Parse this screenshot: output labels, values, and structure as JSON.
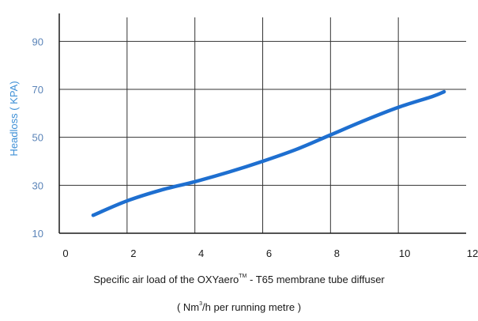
{
  "chart_data": {
    "type": "line",
    "ylabel": "Headloss ( KPA)",
    "xlabel_line1_pre": "Specific air load of the OXYaero",
    "xlabel_line1_sup": "TM",
    "xlabel_line1_post": " - T65 membrane tube diffuser",
    "xlabel_line2_pre": "( Nm",
    "xlabel_line2_sup": "3",
    "xlabel_line2_post": "/h per running metre )",
    "xlim": [
      0,
      12
    ],
    "ylim": [
      10,
      100
    ],
    "xticks": [
      0,
      2,
      4,
      6,
      8,
      10,
      12
    ],
    "yticks": [
      10,
      30,
      50,
      70,
      90
    ],
    "grid": true,
    "series": [
      {
        "color": "#1e6fd0",
        "x": [
          1.0,
          2.0,
          3.0,
          4.0,
          5.0,
          6.0,
          7.0,
          8.0,
          9.0,
          10.0,
          11.0,
          11.35
        ],
        "y": [
          17.5,
          23.5,
          28.0,
          31.5,
          35.5,
          40.0,
          45.0,
          51.0,
          57.0,
          62.5,
          67.0,
          69.0
        ]
      }
    ],
    "axis_color": "#1a1a1a",
    "tick_color": "#5b84b8",
    "ylabel_color": "#3d8fd6"
  }
}
